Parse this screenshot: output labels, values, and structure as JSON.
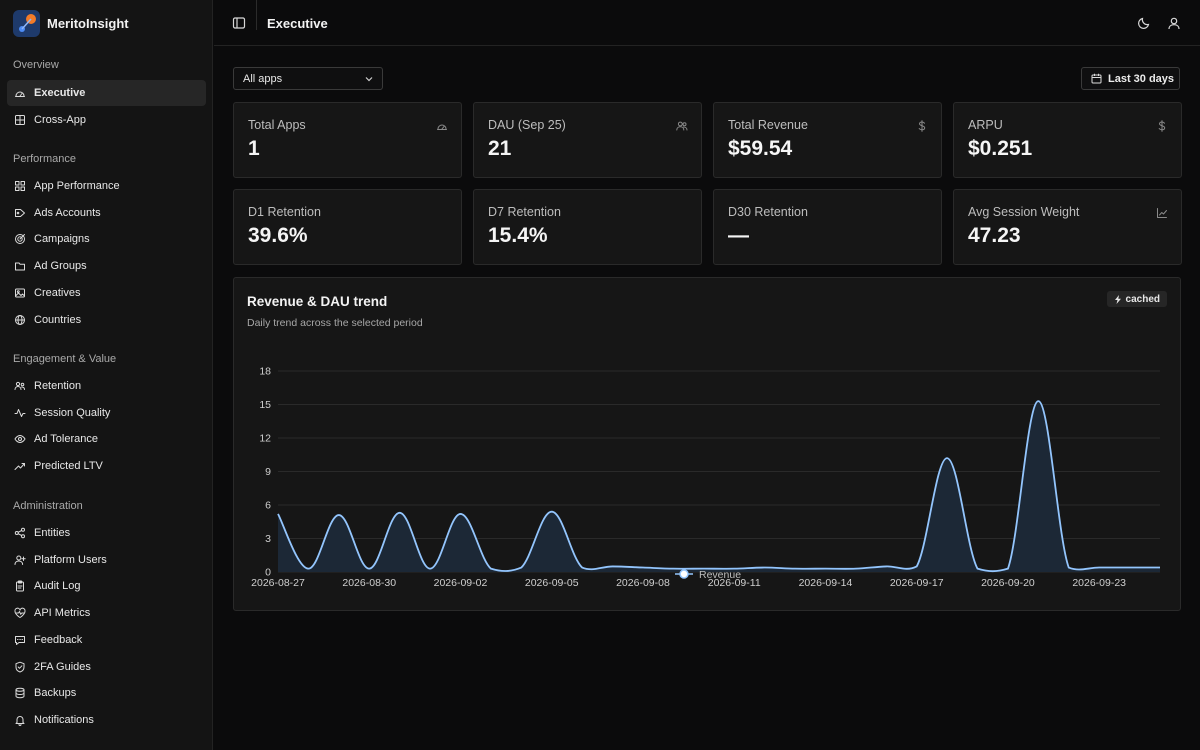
{
  "app": {
    "name": "MeritoInsight"
  },
  "sidebar": {
    "sections": [
      {
        "title": "Overview",
        "items": [
          {
            "label": "Executive",
            "icon": "gauge-icon",
            "active": true
          },
          {
            "label": "Cross-App",
            "icon": "grid-icon"
          }
        ]
      },
      {
        "title": "Performance",
        "items": [
          {
            "label": "App Performance",
            "icon": "apps-grid-icon"
          },
          {
            "label": "Ads Accounts",
            "icon": "tag-icon"
          },
          {
            "label": "Campaigns",
            "icon": "target-icon"
          },
          {
            "label": "Ad Groups",
            "icon": "folder-icon"
          },
          {
            "label": "Creatives",
            "icon": "image-icon"
          },
          {
            "label": "Countries",
            "icon": "globe-icon"
          }
        ]
      },
      {
        "title": "Engagement & Value",
        "items": [
          {
            "label": "Retention",
            "icon": "users-cycle-icon"
          },
          {
            "label": "Session Quality",
            "icon": "activity-icon"
          },
          {
            "label": "Ad Tolerance",
            "icon": "eye-icon"
          },
          {
            "label": "Predicted LTV",
            "icon": "trend-up-icon"
          }
        ]
      },
      {
        "title": "Administration",
        "items": [
          {
            "label": "Entities",
            "icon": "nodes-icon"
          },
          {
            "label": "Platform Users",
            "icon": "user-plus-icon"
          },
          {
            "label": "Audit Log",
            "icon": "clipboard-icon"
          },
          {
            "label": "API Metrics",
            "icon": "heart-pulse-icon"
          },
          {
            "label": "Feedback",
            "icon": "message-icon"
          },
          {
            "label": "2FA Guides",
            "icon": "shield-icon"
          },
          {
            "label": "Backups",
            "icon": "database-icon"
          },
          {
            "label": "Notifications",
            "icon": "bell-icon"
          }
        ]
      }
    ]
  },
  "header": {
    "title": "Executive"
  },
  "filters": {
    "app_select": "All apps",
    "date_range": "Last 30 days"
  },
  "kpis": [
    {
      "label": "Total Apps",
      "value": "1",
      "icon": "gauge-icon"
    },
    {
      "label": "DAU (Sep 25)",
      "value": "21",
      "icon": "users-icon"
    },
    {
      "label": "Total Revenue",
      "value": "$59.54",
      "icon": "dollar-icon"
    },
    {
      "label": "ARPU",
      "value": "$0.251",
      "icon": "dollar-icon"
    },
    {
      "label": "D1 Retention",
      "value": "39.6%",
      "icon": ""
    },
    {
      "label": "D7 Retention",
      "value": "15.4%",
      "icon": ""
    },
    {
      "label": "D30 Retention",
      "value": "—",
      "icon": ""
    },
    {
      "label": "Avg Session Weight",
      "value": "47.23",
      "icon": "trend-icon"
    }
  ],
  "panel": {
    "title": "Revenue & DAU trend",
    "subtitle": "Daily trend across the selected period",
    "badge": "cached"
  },
  "colors": {
    "line": "#93c5fd",
    "fill": "#1c2836",
    "grid": "#2a2a2a",
    "axis_text": "#cfcfcf"
  },
  "chart_data": {
    "type": "area",
    "x": [
      "2026-08-27",
      "2026-08-28",
      "2026-08-29",
      "2026-08-30",
      "2026-08-31",
      "2026-09-01",
      "2026-09-02",
      "2026-09-03",
      "2026-09-04",
      "2026-09-05",
      "2026-09-06",
      "2026-09-07",
      "2026-09-08",
      "2026-09-09",
      "2026-09-10",
      "2026-09-11",
      "2026-09-12",
      "2026-09-13",
      "2026-09-14",
      "2026-09-15",
      "2026-09-16",
      "2026-09-17",
      "2026-09-18",
      "2026-09-19",
      "2026-09-20",
      "2026-09-21",
      "2026-09-22",
      "2026-09-23",
      "2026-09-24",
      "2026-09-25"
    ],
    "x_ticks": [
      "2026-08-27",
      "2026-08-30",
      "2026-09-02",
      "2026-09-05",
      "2026-09-08",
      "2026-09-11",
      "2026-09-14",
      "2026-09-17",
      "2026-09-20",
      "2026-09-23"
    ],
    "series": [
      {
        "name": "Revenue",
        "values": [
          5.2,
          0.3,
          5.1,
          0.3,
          5.3,
          0.3,
          5.2,
          0.3,
          0.4,
          5.4,
          0.4,
          0.5,
          0.4,
          0.3,
          0.3,
          0.3,
          0.4,
          0.3,
          0.3,
          0.3,
          0.5,
          0.5,
          10.2,
          0.3,
          0.3,
          15.3,
          0.4,
          0.4,
          0.4,
          0.4
        ]
      }
    ],
    "ylim": [
      0,
      18
    ],
    "y_ticks": [
      0,
      3,
      6,
      9,
      12,
      15,
      18
    ],
    "grid": true,
    "legend": "bottom-center"
  }
}
